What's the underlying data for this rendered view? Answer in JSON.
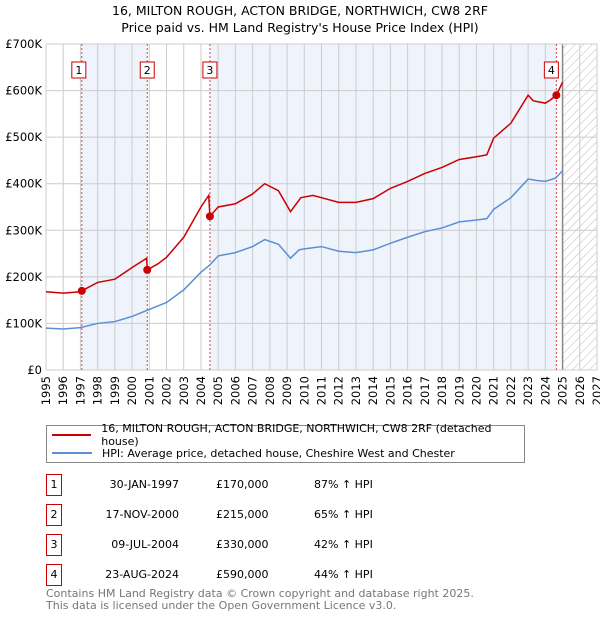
{
  "title": "16, MILTON ROUGH, ACTON BRIDGE, NORTHWICH, CW8 2RF",
  "subtitle": "Price paid vs. HM Land Registry's House Price Index (HPI)",
  "chart_data": {
    "type": "line",
    "xlim": [
      1995,
      2027
    ],
    "ylim": [
      0,
      700000
    ],
    "yticks": [
      {
        "v": 0,
        "label": "£0"
      },
      {
        "v": 100000,
        "label": "£100K"
      },
      {
        "v": 200000,
        "label": "£200K"
      },
      {
        "v": 300000,
        "label": "£300K"
      },
      {
        "v": 400000,
        "label": "£400K"
      },
      {
        "v": 500000,
        "label": "£500K"
      },
      {
        "v": 600000,
        "label": "£600K"
      },
      {
        "v": 700000,
        "label": "£700K"
      }
    ],
    "xticks": [
      "1995",
      "1996",
      "1997",
      "1998",
      "1999",
      "2000",
      "2001",
      "2002",
      "2003",
      "2004",
      "2005",
      "2006",
      "2007",
      "2008",
      "2009",
      "2010",
      "2011",
      "2012",
      "2013",
      "2014",
      "2015",
      "2016",
      "2017",
      "2018",
      "2019",
      "2020",
      "2021",
      "2022",
      "2023",
      "2024",
      "2025",
      "2026",
      "2027"
    ],
    "forecast_start": 2025.0,
    "colors": {
      "property": "#cc0000",
      "hpi": "#5b8fd4",
      "shade": "#eef3fc"
    },
    "series": [
      {
        "name": "16, MILTON ROUGH, ACTON BRIDGE, NORTHWICH, CW8 2RF (detached house)",
        "color": "#cc0000",
        "x": [
          1995,
          1996,
          1997,
          1997.08,
          1998,
          1999,
          2000,
          2000.85,
          2000.88,
          2001.5,
          2002,
          2003,
          2004,
          2004.45,
          2004.52,
          2005,
          2006,
          2007,
          2007.7,
          2008.5,
          2009.2,
          2009.8,
          2010.5,
          2011,
          2012,
          2013,
          2014,
          2015,
          2016,
          2017,
          2018,
          2019,
          2020,
          2020.6,
          2021,
          2022,
          2023,
          2023.3,
          2024,
          2024.3,
          2024.64,
          2025
        ],
        "y": [
          168000,
          165000,
          168000,
          170000,
          188000,
          195000,
          220000,
          240000,
          215000,
          228000,
          242000,
          285000,
          350000,
          375000,
          330000,
          350000,
          357000,
          378000,
          400000,
          385000,
          340000,
          370000,
          375000,
          370000,
          360000,
          360000,
          368000,
          390000,
          405000,
          422000,
          435000,
          452000,
          458000,
          462000,
          498000,
          530000,
          590000,
          578000,
          573000,
          580000,
          590000,
          618000
        ]
      },
      {
        "name": "HPI: Average price, detached house, Cheshire West and Chester",
        "color": "#5b8fd4",
        "x": [
          1995,
          1996,
          1997,
          1998,
          1999,
          2000,
          2001,
          2002,
          2003,
          2004,
          2004.5,
          2005,
          2006,
          2007,
          2007.7,
          2008.5,
          2009.2,
          2009.7,
          2010,
          2011,
          2012,
          2013,
          2014,
          2015,
          2016,
          2017,
          2018,
          2019,
          2020,
          2020.6,
          2021,
          2022,
          2023,
          2023.5,
          2024,
          2024.6,
          2025
        ],
        "y": [
          90000,
          88000,
          91000,
          100000,
          104000,
          115000,
          130000,
          145000,
          172000,
          210000,
          225000,
          245000,
          252000,
          265000,
          280000,
          270000,
          240000,
          258000,
          260000,
          265000,
          255000,
          252000,
          258000,
          272000,
          285000,
          297000,
          305000,
          318000,
          322000,
          325000,
          345000,
          370000,
          410000,
          407000,
          405000,
          412000,
          428000
        ]
      }
    ],
    "sales": [
      {
        "n": "1",
        "x": 2000.0,
        "date_x": 1997.08,
        "date": "30-JAN-1997",
        "price": "£170,000",
        "value": 170000,
        "hpi": "87% ↑ HPI"
      },
      {
        "n": "2",
        "date_x": 2000.88,
        "date": "17-NOV-2000",
        "price": "£215,000",
        "value": 215000,
        "hpi": "65% ↑ HPI"
      },
      {
        "n": "3",
        "date_x": 2004.52,
        "date": "09-JUL-2004",
        "price": "£330,000",
        "value": 330000,
        "hpi": "42% ↑ HPI"
      },
      {
        "n": "4",
        "date_x": 2024.64,
        "date": "23-AUG-2024",
        "price": "£590,000",
        "value": 590000,
        "hpi": "44% ↑ HPI"
      }
    ]
  },
  "legend": {
    "property": "16, MILTON ROUGH, ACTON BRIDGE, NORTHWICH, CW8 2RF (detached house)",
    "hpi": "HPI: Average price, detached house, Cheshire West and Chester"
  },
  "footer": {
    "line1": "Contains HM Land Registry data © Crown copyright and database right 2025.",
    "line2": "This data is licensed under the Open Government Licence v3.0."
  }
}
